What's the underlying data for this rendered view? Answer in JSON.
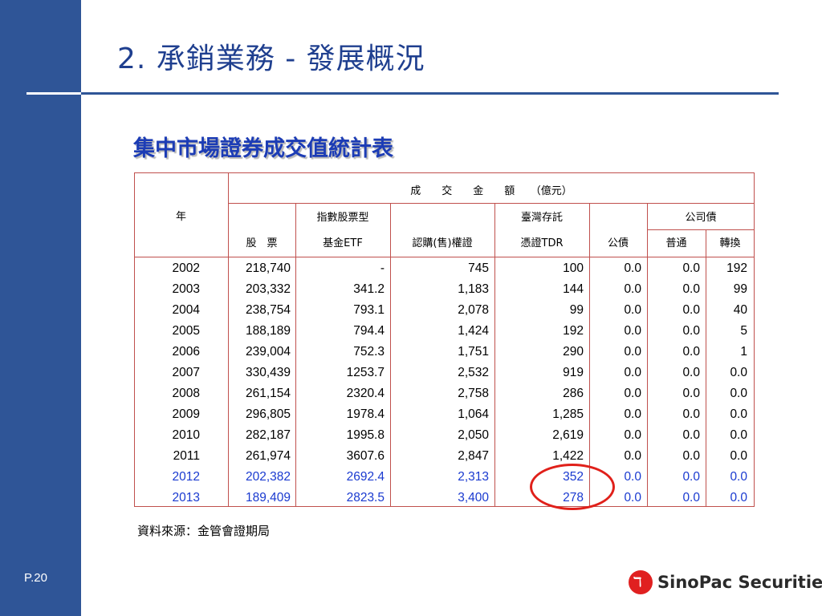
{
  "page": {
    "title": "2. 承銷業務 - 發展概況",
    "subtitle": "集中市場證券成交值統計表",
    "source": "資料來源：金管會證期局",
    "page_number": "P.20"
  },
  "brand": {
    "name": "SinoPac Securities",
    "accent": "#2f5597",
    "logo_color": "#e02020"
  },
  "table": {
    "headers": {
      "year": "年",
      "amount": "成　　交　　金　　額　　（億元）",
      "stock": "股　票",
      "etf_top": "指數股票型",
      "etf_bottom": "基金ETF",
      "warrant": "認購(售)權證",
      "tdr_top": "臺灣存託",
      "tdr_bottom": "憑證TDR",
      "gov_bond": "公債",
      "corp_bond": "公司債",
      "corp_regular": "普通",
      "corp_convert": "轉換"
    },
    "rows": [
      {
        "year": "2002",
        "stock": "218,740",
        "etf": "-",
        "warrant": "745",
        "tdr": "100",
        "gov": "0.0",
        "reg": "0.0",
        "conv": "192"
      },
      {
        "year": "2003",
        "stock": "203,332",
        "etf": "341.2",
        "warrant": "1,183",
        "tdr": "144",
        "gov": "0.0",
        "reg": "0.0",
        "conv": "99"
      },
      {
        "year": "2004",
        "stock": "238,754",
        "etf": "793.1",
        "warrant": "2,078",
        "tdr": "99",
        "gov": "0.0",
        "reg": "0.0",
        "conv": "40"
      },
      {
        "year": "2005",
        "stock": "188,189",
        "etf": "794.4",
        "warrant": "1,424",
        "tdr": "192",
        "gov": "0.0",
        "reg": "0.0",
        "conv": "5"
      },
      {
        "year": "2006",
        "stock": "239,004",
        "etf": "752.3",
        "warrant": "1,751",
        "tdr": "290",
        "gov": "0.0",
        "reg": "0.0",
        "conv": "1"
      },
      {
        "year": "2007",
        "stock": "330,439",
        "etf": "1253.7",
        "warrant": "2,532",
        "tdr": "919",
        "gov": "0.0",
        "reg": "0.0",
        "conv": "0.0"
      },
      {
        "year": "2008",
        "stock": "261,154",
        "etf": "2320.4",
        "warrant": "2,758",
        "tdr": "286",
        "gov": "0.0",
        "reg": "0.0",
        "conv": "0.0"
      },
      {
        "year": "2009",
        "stock": "296,805",
        "etf": "1978.4",
        "warrant": "1,064",
        "tdr": "1,285",
        "gov": "0.0",
        "reg": "0.0",
        "conv": "0.0"
      },
      {
        "year": "2010",
        "stock": "282,187",
        "etf": "1995.8",
        "warrant": "2,050",
        "tdr": "2,619",
        "gov": "0.0",
        "reg": "0.0",
        "conv": "0.0"
      },
      {
        "year": "2011",
        "stock": "261,974",
        "etf": "3607.6",
        "warrant": "2,847",
        "tdr": "1,422",
        "gov": "0.0",
        "reg": "0.0",
        "conv": "0.0"
      },
      {
        "year": "2012",
        "stock": "202,382",
        "etf": "2692.4",
        "warrant": "2,313",
        "tdr": "352",
        "gov": "0.0",
        "reg": "0.0",
        "conv": "0.0",
        "highlight": true
      },
      {
        "year": "2013",
        "stock": "189,409",
        "etf": "2823.5",
        "warrant": "3,400",
        "tdr": "278",
        "gov": "0.0",
        "reg": "0.0",
        "conv": "0.0",
        "highlight": true
      }
    ],
    "highlight_color": "#1a3ad0",
    "circle_color": "#e0201a"
  }
}
